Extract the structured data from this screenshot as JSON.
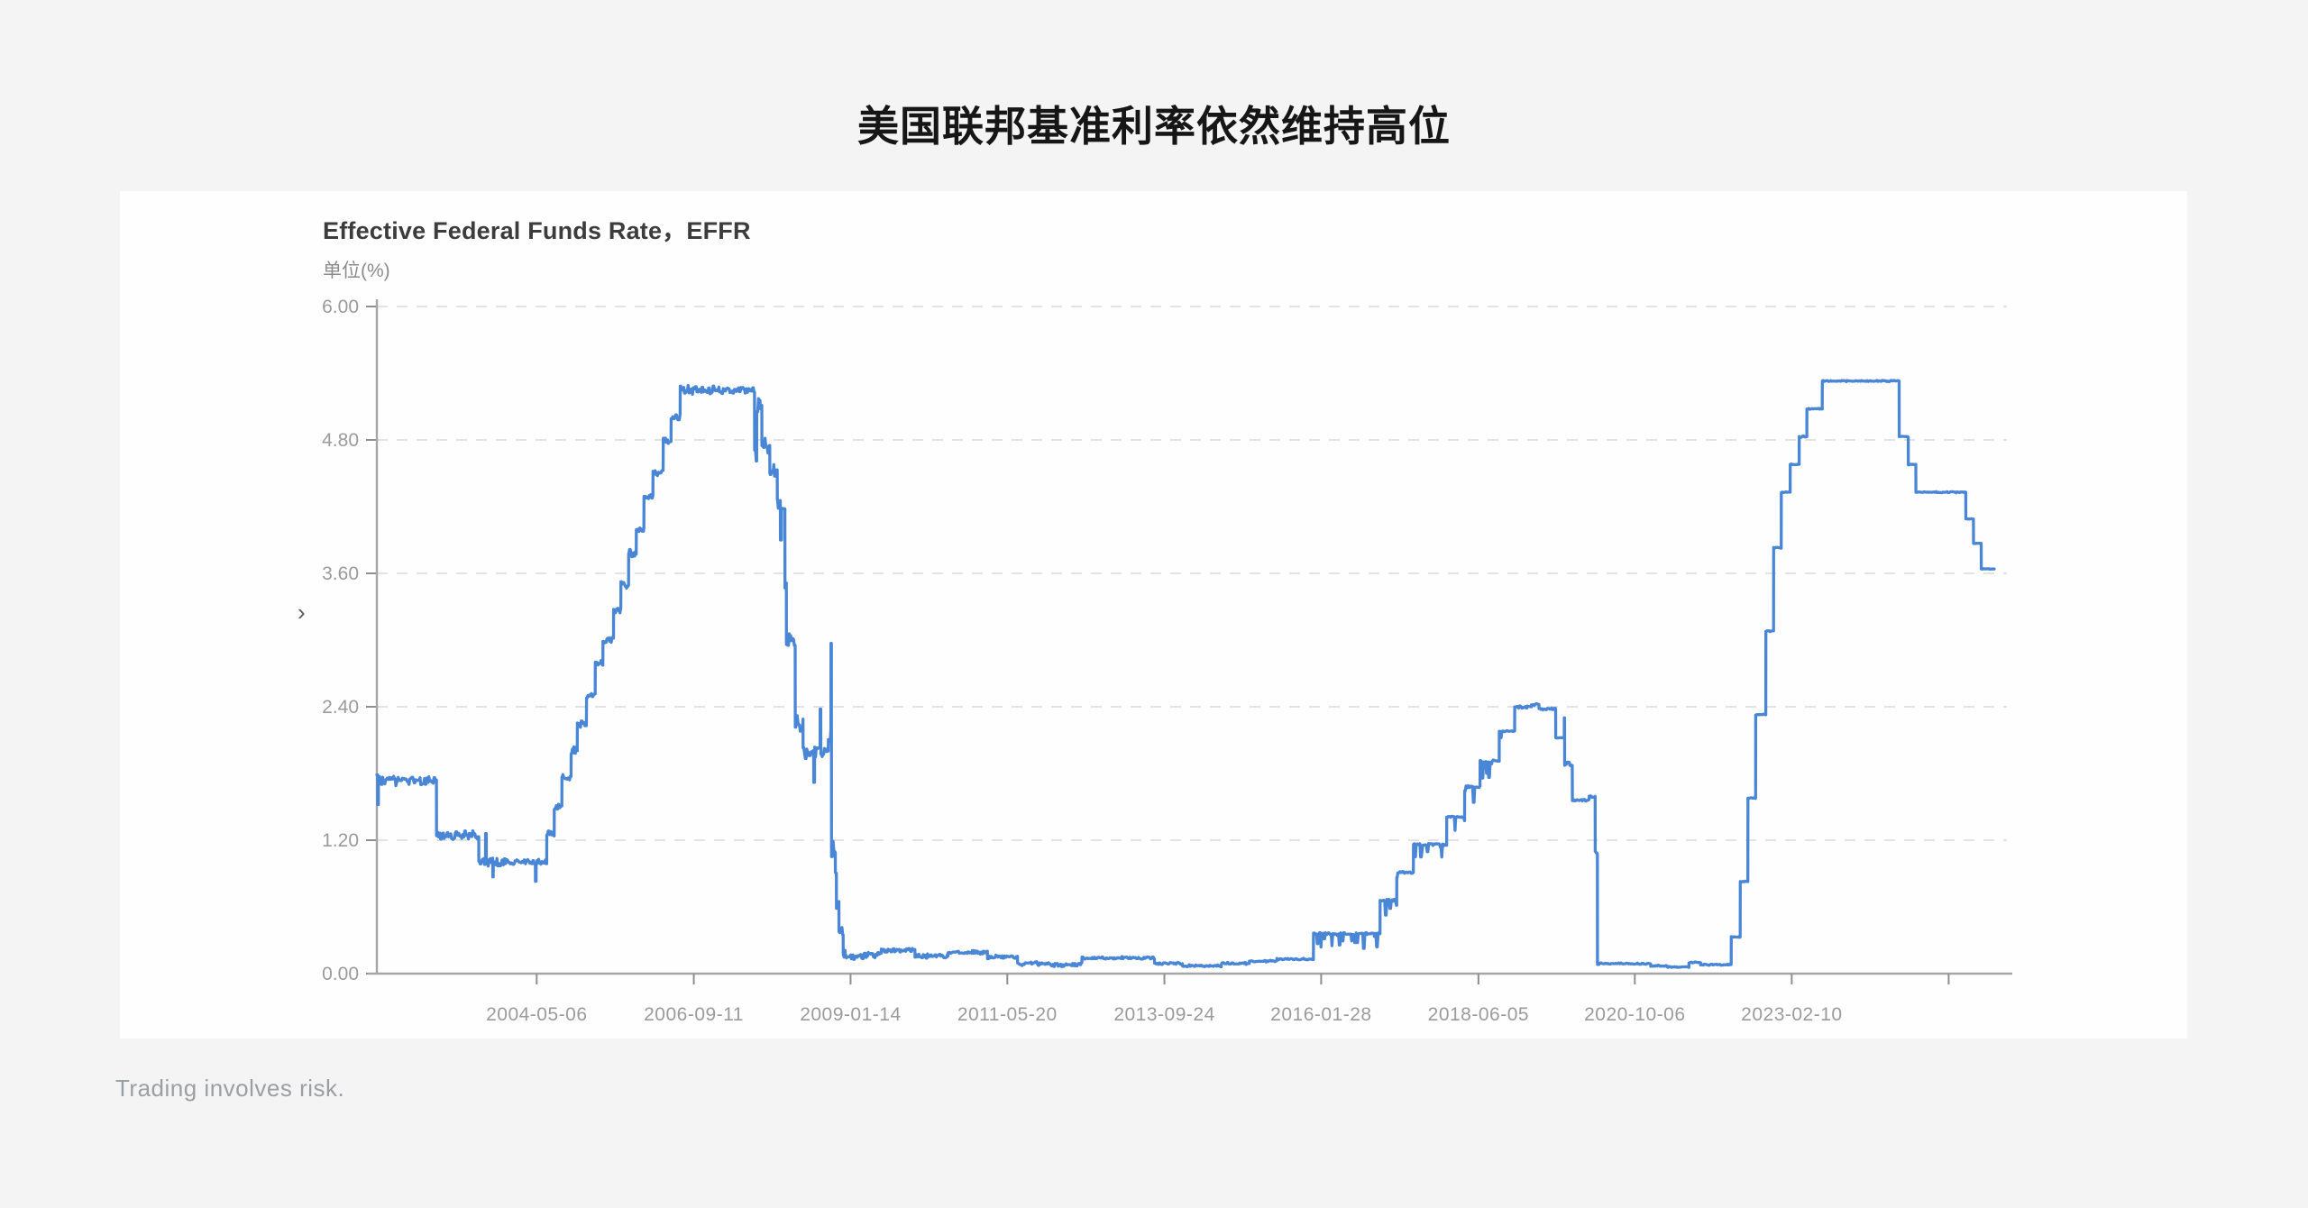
{
  "page": {
    "title": "美国联邦基准利率依然维持高位",
    "footer": "Trading involves risk."
  },
  "chart": {
    "title": "Effective Federal Funds Rate，EFFR",
    "unit_label": "单位(%)",
    "collapse_glyph": "›"
  },
  "chart_data": {
    "type": "line",
    "title": "Effective Federal Funds Rate，EFFR",
    "unit": "%",
    "ylabel": "单位(%)",
    "ylim": [
      0,
      6
    ],
    "grid": "horizontal-dashed",
    "legend_position": "none",
    "y_ticks": [
      {
        "v": 0.0,
        "label": "0.00"
      },
      {
        "v": 1.2,
        "label": "1.20"
      },
      {
        "v": 2.4,
        "label": "2.40"
      },
      {
        "v": 3.6,
        "label": "3.60"
      },
      {
        "v": 4.8,
        "label": "4.80"
      },
      {
        "v": 6.0,
        "label": "6.00"
      }
    ],
    "x_domain": [
      "2001-12-15",
      "2026-02-20"
    ],
    "x_ticks": [
      {
        "d": "2004-05-06",
        "label": "2004-05-06"
      },
      {
        "d": "2006-09-11",
        "label": "2006-09-11"
      },
      {
        "d": "2009-01-14",
        "label": "2009-01-14"
      },
      {
        "d": "2011-05-20",
        "label": "2011-05-20"
      },
      {
        "d": "2013-09-24",
        "label": "2013-09-24"
      },
      {
        "d": "2016-01-28",
        "label": "2016-01-28"
      },
      {
        "d": "2018-06-05",
        "label": "2018-06-05"
      },
      {
        "d": "2020-10-06",
        "label": "2020-10-06"
      },
      {
        "d": "2023-02-10",
        "label": "2023-02-10"
      },
      {
        "d": "2025-06-16",
        "label": ""
      }
    ],
    "colors": {
      "line": "#4a86d6",
      "grid": "#e3e3e3",
      "axis": "#a6a6a6",
      "tick": "#8f8f8f",
      "label": "#9b9b9b"
    },
    "series": [
      {
        "name": "EFFR",
        "points": [
          {
            "d": "2001-12-15",
            "v": 1.75,
            "j": 0.05
          },
          {
            "d": "2001-12-20",
            "v": 1.52,
            "j": 0
          },
          {
            "d": "2001-12-24",
            "v": 1.74,
            "j": 0.055
          },
          {
            "d": "2002-11-06",
            "v": 1.24,
            "j": 0.055
          },
          {
            "d": "2003-06-25",
            "v": 1.01,
            "j": 0.045
          },
          {
            "d": "2003-08-01",
            "v": 1.26,
            "j": 0
          },
          {
            "d": "2003-08-05",
            "v": 1.01,
            "j": 0.045
          },
          {
            "d": "2003-09-09",
            "v": 0.87,
            "j": 0
          },
          {
            "d": "2003-09-12",
            "v": 1.0,
            "j": 0.045
          },
          {
            "d": "2004-04-29",
            "v": 0.83,
            "j": 0
          },
          {
            "d": "2004-05-03",
            "v": 1.0,
            "j": 0.04
          },
          {
            "d": "2004-06-30",
            "v": 1.26,
            "j": 0.04
          },
          {
            "d": "2004-08-10",
            "v": 1.5,
            "j": 0.04
          },
          {
            "d": "2004-09-21",
            "v": 1.76,
            "j": 0.04
          },
          {
            "d": "2004-11-10",
            "v": 2.0,
            "j": 0.05
          },
          {
            "d": "2004-12-14",
            "v": 2.25,
            "j": 0.04
          },
          {
            "d": "2005-02-02",
            "v": 2.5,
            "j": 0.04
          },
          {
            "d": "2005-03-22",
            "v": 2.79,
            "j": 0.04
          },
          {
            "d": "2005-05-03",
            "v": 3.0,
            "j": 0.04
          },
          {
            "d": "2005-06-30",
            "v": 3.26,
            "j": 0.04
          },
          {
            "d": "2005-08-09",
            "v": 3.5,
            "j": 0.04
          },
          {
            "d": "2005-09-20",
            "v": 3.78,
            "j": 0.04
          },
          {
            "d": "2005-11-01",
            "v": 4.0,
            "j": 0.04
          },
          {
            "d": "2005-12-13",
            "v": 4.28,
            "j": 0.05
          },
          {
            "d": "2006-01-31",
            "v": 4.5,
            "j": 0.04
          },
          {
            "d": "2006-03-28",
            "v": 4.79,
            "j": 0.04
          },
          {
            "d": "2006-05-10",
            "v": 5.0,
            "j": 0.04
          },
          {
            "d": "2006-06-29",
            "v": 5.25,
            "j": 0.045
          },
          {
            "d": "2007-08-09",
            "v": 4.68,
            "j": 0.16
          },
          {
            "d": "2007-08-21",
            "v": 5.12,
            "j": 0.09
          },
          {
            "d": "2007-09-18",
            "v": 4.76,
            "j": 0.11
          },
          {
            "d": "2007-10-31",
            "v": 4.51,
            "j": 0.09
          },
          {
            "d": "2007-12-11",
            "v": 4.24,
            "j": 0.11
          },
          {
            "d": "2007-12-28",
            "v": 3.9,
            "j": 0
          },
          {
            "d": "2008-01-03",
            "v": 4.21,
            "j": 0.07
          },
          {
            "d": "2008-01-22",
            "v": 3.51,
            "j": 0.09
          },
          {
            "d": "2008-01-30",
            "v": 3.0,
            "j": 0.09
          },
          {
            "d": "2008-03-18",
            "v": 2.25,
            "j": 0.1
          },
          {
            "d": "2008-04-30",
            "v": 2.0,
            "j": 0.08
          },
          {
            "d": "2008-06-27",
            "v": 1.72,
            "j": 0
          },
          {
            "d": "2008-07-02",
            "v": 2.0,
            "j": 0.07
          },
          {
            "d": "2008-08-01",
            "v": 2.38,
            "j": 0
          },
          {
            "d": "2008-08-05",
            "v": 2.0,
            "j": 0.06
          },
          {
            "d": "2008-09-15",
            "v": 2.1,
            "j": 0.18
          },
          {
            "d": "2008-09-29",
            "v": 2.97,
            "j": 0
          },
          {
            "d": "2008-10-02",
            "v": 1.12,
            "j": 0.14
          },
          {
            "d": "2008-10-23",
            "v": 0.93,
            "j": 0.1
          },
          {
            "d": "2008-10-29",
            "v": 0.62,
            "j": 0.12
          },
          {
            "d": "2008-11-12",
            "v": 0.36,
            "j": 0.07
          },
          {
            "d": "2008-12-05",
            "v": 0.18,
            "j": 0.05
          },
          {
            "d": "2008-12-16",
            "v": 0.15,
            "j": 0.035
          },
          {
            "d": "2009-04-01",
            "v": 0.17,
            "j": 0.03
          },
          {
            "d": "2009-07-01",
            "v": 0.21,
            "j": 0.025
          },
          {
            "d": "2010-01-01",
            "v": 0.16,
            "j": 0.025
          },
          {
            "d": "2010-07-01",
            "v": 0.19,
            "j": 0.02
          },
          {
            "d": "2011-02-01",
            "v": 0.15,
            "j": 0.02
          },
          {
            "d": "2011-07-15",
            "v": 0.09,
            "j": 0.02
          },
          {
            "d": "2012-01-01",
            "v": 0.08,
            "j": 0.02
          },
          {
            "d": "2012-07-01",
            "v": 0.14,
            "j": 0.015
          },
          {
            "d": "2013-02-01",
            "v": 0.14,
            "j": 0.015
          },
          {
            "d": "2013-08-01",
            "v": 0.09,
            "j": 0.015
          },
          {
            "d": "2014-01-01",
            "v": 0.07,
            "j": 0.012
          },
          {
            "d": "2014-08-01",
            "v": 0.09,
            "j": 0.012
          },
          {
            "d": "2015-01-01",
            "v": 0.11,
            "j": 0.012
          },
          {
            "d": "2015-06-01",
            "v": 0.13,
            "j": 0.012
          },
          {
            "d": "2015-12-17",
            "v": 0.36,
            "j": -0.13
          },
          {
            "d": "2016-12-15",
            "v": 0.66,
            "j": -0.13
          },
          {
            "d": "2017-03-16",
            "v": 0.91,
            "j": -0.13
          },
          {
            "d": "2017-06-15",
            "v": 1.16,
            "j": -0.14
          },
          {
            "d": "2017-12-14",
            "v": 1.41,
            "j": -0.14
          },
          {
            "d": "2018-03-22",
            "v": 1.68,
            "j": -0.15
          },
          {
            "d": "2018-06-14",
            "v": 1.91,
            "j": -0.15
          },
          {
            "d": "2018-09-27",
            "v": 2.18,
            "j": -0.06
          },
          {
            "d": "2018-12-20",
            "v": 2.4,
            "j": 0.015
          },
          {
            "d": "2019-03-21",
            "v": 2.42,
            "j": 0.012
          },
          {
            "d": "2019-05-02",
            "v": 2.38,
            "j": 0.012
          },
          {
            "d": "2019-08-01",
            "v": 2.12,
            "j": -0.05
          },
          {
            "d": "2019-09-17",
            "v": 2.3,
            "j": 0
          },
          {
            "d": "2019-09-19",
            "v": 1.9,
            "j": -0.04
          },
          {
            "d": "2019-10-31",
            "v": 1.56,
            "j": 0.012
          },
          {
            "d": "2020-01-31",
            "v": 1.59,
            "j": 0.01
          },
          {
            "d": "2020-03-04",
            "v": 1.09,
            "j": 0.02
          },
          {
            "d": "2020-03-16",
            "v": 0.09,
            "j": 0.01
          },
          {
            "d": "2020-07-01",
            "v": 0.09,
            "j": 0.008
          },
          {
            "d": "2021-01-01",
            "v": 0.07,
            "j": 0.008
          },
          {
            "d": "2021-04-01",
            "v": 0.06,
            "j": 0.006
          },
          {
            "d": "2021-07-29",
            "v": 0.1,
            "j": 0.006
          },
          {
            "d": "2021-10-01",
            "v": 0.08,
            "j": 0.006
          },
          {
            "d": "2022-03-17",
            "v": 0.33,
            "j": 0.005
          },
          {
            "d": "2022-05-05",
            "v": 0.83,
            "j": 0.005
          },
          {
            "d": "2022-06-16",
            "v": 1.58,
            "j": 0.005
          },
          {
            "d": "2022-07-28",
            "v": 2.33,
            "j": 0.005
          },
          {
            "d": "2022-09-22",
            "v": 3.08,
            "j": 0.005
          },
          {
            "d": "2022-11-03",
            "v": 3.83,
            "j": 0.005
          },
          {
            "d": "2022-12-15",
            "v": 4.33,
            "j": 0.005
          },
          {
            "d": "2023-02-02",
            "v": 4.58,
            "j": 0.005
          },
          {
            "d": "2023-03-23",
            "v": 4.83,
            "j": 0.008
          },
          {
            "d": "2023-05-04",
            "v": 5.08,
            "j": 0.006
          },
          {
            "d": "2023-07-27",
            "v": 5.33,
            "j": 0.006
          },
          {
            "d": "2024-09-19",
            "v": 4.83,
            "j": 0.005
          },
          {
            "d": "2024-11-08",
            "v": 4.58,
            "j": 0.005
          },
          {
            "d": "2024-12-19",
            "v": 4.33,
            "j": 0.006
          },
          {
            "d": "2025-09-18",
            "v": 4.09,
            "j": 0.005
          },
          {
            "d": "2025-10-30",
            "v": 3.87,
            "j": 0.005
          },
          {
            "d": "2025-12-11",
            "v": 3.64,
            "j": 0.004
          },
          {
            "d": "2026-02-20",
            "v": 3.64,
            "j": 0
          }
        ]
      }
    ]
  }
}
